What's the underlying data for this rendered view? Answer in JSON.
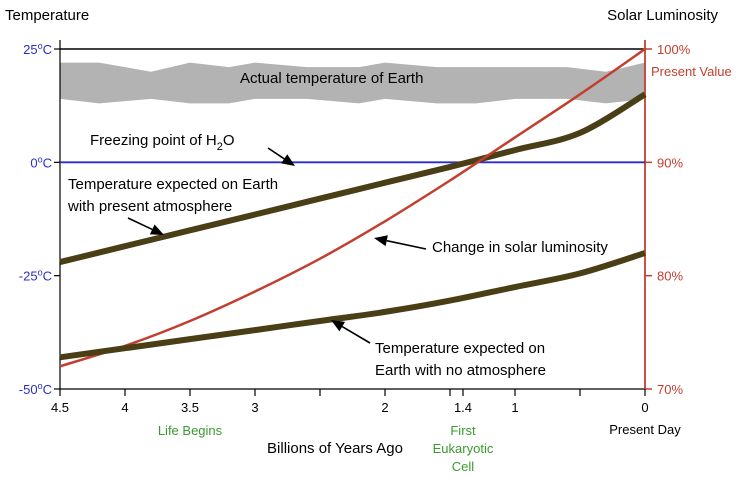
{
  "chart_data": {
    "type": "line",
    "left_axis_title": "Temperature",
    "right_axis_title": "Solar Luminosity",
    "xlabel": "Billions of Years Ago",
    "xlim": [
      4.5,
      0
    ],
    "ylim_left": [
      -50,
      25
    ],
    "ylim_right": [
      70,
      100
    ],
    "x_ticks": [
      {
        "x": 4.5,
        "label": "4.5"
      },
      {
        "x": 4,
        "label": "4"
      },
      {
        "x": 3.5,
        "label": "3.5"
      },
      {
        "x": 3,
        "label": "3"
      },
      {
        "x": 2,
        "label": "2"
      },
      {
        "x": 1.4,
        "label": "1.4"
      },
      {
        "x": 1,
        "label": "1"
      },
      {
        "x": 0,
        "label": "0"
      }
    ],
    "x_minor_ticks": [
      2.5,
      1.5,
      0.5
    ],
    "left_ticks": [
      {
        "y": 25,
        "label": "25oC"
      },
      {
        "y": 0,
        "label": "0oC"
      },
      {
        "y": -25,
        "label": "-25oC"
      },
      {
        "y": -50,
        "label": "-50oC"
      }
    ],
    "right_ticks": [
      {
        "y": 100,
        "label": "100%"
      },
      {
        "y": 90,
        "label": "90%"
      },
      {
        "y": 80,
        "label": "80%"
      },
      {
        "y": 70,
        "label": "70%"
      }
    ],
    "present_value_label": "Present Value",
    "present_day_label": "Present Day",
    "event_labels": [
      {
        "x": 3.5,
        "label": "Life Begins"
      },
      {
        "x": 1.4,
        "label": "First Eukaryotic Cell"
      }
    ],
    "series": [
      {
        "name": "Actual temperature of Earth",
        "kind": "band",
        "axis": "left",
        "x": [
          4.5,
          4.2,
          3.8,
          3.5,
          3.2,
          3.0,
          2.6,
          2.2,
          2.0,
          1.6,
          1.3,
          1.0,
          0.6,
          0.3,
          0.0
        ],
        "upper": [
          22,
          22,
          20,
          22,
          21,
          22,
          21,
          21,
          22,
          21,
          21,
          21,
          21,
          20,
          22
        ],
        "lower": [
          14,
          13,
          14,
          13,
          13,
          14,
          14,
          13,
          14,
          13,
          13,
          14,
          14,
          13,
          14
        ]
      },
      {
        "name": "Freezing point of H2O",
        "kind": "line",
        "axis": "left",
        "color": "#2a2ec8",
        "x": [
          4.5,
          0
        ],
        "y": [
          0,
          0
        ]
      },
      {
        "name": "Temperature expected on Earth with present atmosphere",
        "kind": "line",
        "axis": "left",
        "color": "#4a3e17",
        "x": [
          4.5,
          4,
          3.5,
          3,
          2.5,
          2,
          1.5,
          1,
          0.5,
          0
        ],
        "y": [
          -22,
          -18.5,
          -15,
          -11.5,
          -8,
          -4.5,
          -1,
          2.7,
          6.5,
          15
        ]
      },
      {
        "name": "Change in solar luminosity",
        "kind": "line",
        "axis": "right",
        "color": "#c23f2f",
        "x": [
          4.5,
          4,
          3.5,
          3,
          2.5,
          2,
          1.5,
          1,
          0.5,
          0
        ],
        "y": [
          72.0,
          73.8,
          76.0,
          78.6,
          81.5,
          84.8,
          88.4,
          92.2,
          96.0,
          100.0
        ]
      },
      {
        "name": "Temperature expected on Earth with no atmosphere",
        "kind": "line",
        "axis": "left",
        "color": "#4a3e17",
        "x": [
          4.5,
          4,
          3.5,
          3,
          2.5,
          2,
          1.5,
          1,
          0.5,
          0
        ],
        "y": [
          -43,
          -41,
          -39,
          -37,
          -35,
          -33,
          -30.5,
          -27.5,
          -24.5,
          -20
        ]
      }
    ],
    "annotations": {
      "actual_temperature": "Actual temperature of Earth",
      "freezing_point": "Freezing point of H",
      "freezing_point_sub": "2",
      "freezing_point_tail": "O",
      "present_atmosphere_line1": "Temperature expected on Earth",
      "present_atmosphere_line2": "with present atmosphere",
      "solar_luminosity": "Change in solar luminosity",
      "no_atmosphere_line1": "Temperature expected on",
      "no_atmosphere_line2": "Earth with no atmosphere"
    },
    "colors": {
      "axis_left": "#000000",
      "axis_right": "#c23f2f",
      "freezing_line": "#2a2ec8",
      "temperature_lines": "#4a3e17",
      "luminosity_line": "#c23f2f",
      "band": "#b3b3b3",
      "event_labels": "#3a9a2e"
    }
  }
}
